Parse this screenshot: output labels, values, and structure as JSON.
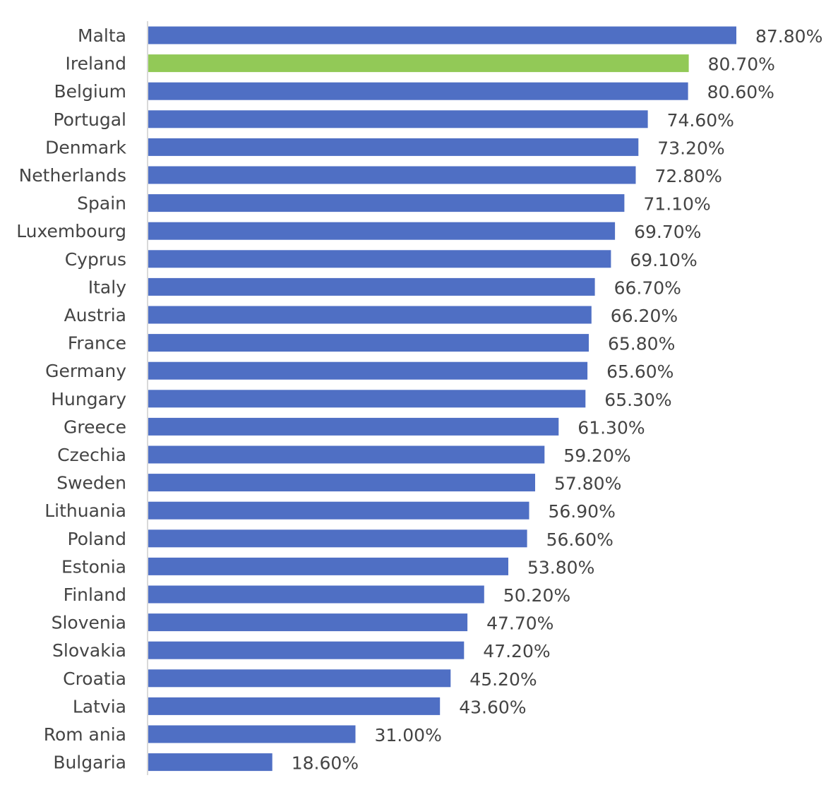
{
  "chart_data": {
    "type": "bar",
    "orientation": "horizontal",
    "title": "",
    "xlabel": "",
    "ylabel": "",
    "xlim": [
      0,
      90
    ],
    "grid": false,
    "legend": "none",
    "value_suffix": "%",
    "colors": {
      "default": "#4f6fc4",
      "highlight": "#92c957",
      "axis": "#d9d9d9",
      "text": "#444444"
    },
    "highlight_category": "Ireland",
    "categories": [
      "Malta",
      "Ireland",
      "Belgium",
      "Portugal",
      "Denmark",
      "Netherlands",
      "Spain",
      "Luxembourg",
      "Cyprus",
      "Italy",
      "Austria",
      "France",
      "Germany",
      "Hungary",
      "Greece",
      "Czechia",
      "Sweden",
      "Lithuania",
      "Poland",
      "Estonia",
      "Finland",
      "Slovenia",
      "Slovakia",
      "Croatia",
      "Latvia",
      "Rom ania",
      "Bulgaria"
    ],
    "values": [
      87.8,
      80.7,
      80.6,
      74.6,
      73.2,
      72.8,
      71.1,
      69.7,
      69.1,
      66.7,
      66.2,
      65.8,
      65.6,
      65.3,
      61.3,
      59.2,
      57.8,
      56.9,
      56.6,
      53.8,
      50.2,
      47.7,
      47.2,
      45.2,
      43.6,
      31.0,
      18.6
    ],
    "value_labels": [
      "87.80%",
      "80.70%",
      "80.60%",
      "74.60%",
      "73.20%",
      "72.80%",
      "71.10%",
      "69.70%",
      "69.10%",
      "66.70%",
      "66.20%",
      "65.80%",
      "65.60%",
      "65.30%",
      "61.30%",
      "59.20%",
      "57.80%",
      "56.90%",
      "56.60%",
      "53.80%",
      "50.20%",
      "47.70%",
      "47.20%",
      "45.20%",
      "43.60%",
      "31.00%",
      "18.60%"
    ]
  }
}
